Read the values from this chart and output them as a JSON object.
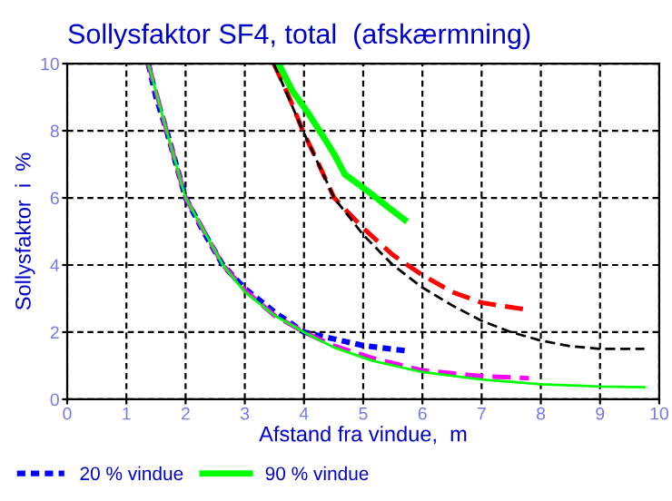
{
  "chart_data": {
    "type": "line",
    "title": "Sollysfaktor SF4, total  (afskærmning)",
    "xlabel": "Afstand fra vindue,  m",
    "ylabel": "Sollysfaktor  i  %",
    "xlim": [
      0,
      10
    ],
    "ylim": [
      0,
      10
    ],
    "xticks": [
      0,
      1,
      2,
      3,
      4,
      5,
      6,
      7,
      8,
      9,
      10
    ],
    "yticks": [
      0,
      2,
      4,
      6,
      8,
      10
    ],
    "grid": true,
    "legend": "bottom",
    "series": [
      {
        "name": "20 % vindue",
        "color": "#0000ff",
        "line_style": "dotted",
        "x": [
          1.37,
          1.5,
          1.68,
          2.0,
          2.3,
          2.63,
          3.0,
          3.5,
          4.0,
          4.5,
          5.0,
          5.7
        ],
        "values": [
          10,
          9,
          8,
          6,
          5,
          4,
          3.3,
          2.6,
          2.0,
          1.8,
          1.6,
          1.45
        ]
      },
      {
        "color": "#ff00ff",
        "line_style": "dashed",
        "x": [
          1.37,
          1.68,
          2.0,
          2.63,
          3.0,
          3.5,
          4.0,
          4.5,
          5.15,
          6.0,
          7.0,
          7.8
        ],
        "values": [
          10,
          8,
          6,
          4,
          3.25,
          2.5,
          2.0,
          1.6,
          1.23,
          0.86,
          0.69,
          0.63
        ]
      },
      {
        "color": "#00ff00",
        "line_style": "solid",
        "x": [
          1.37,
          1.68,
          2.0,
          2.63,
          3.0,
          3.5,
          4.0,
          4.5,
          5.15,
          6.0,
          7.0,
          8.0,
          9.0,
          9.75
        ],
        "values": [
          10,
          8,
          6,
          4,
          3.2,
          2.5,
          2.0,
          1.55,
          1.15,
          0.81,
          0.59,
          0.45,
          0.38,
          0.36
        ]
      },
      {
        "color": "#ff0000",
        "line_style": "dashed",
        "x": [
          3.49,
          3.75,
          3.98,
          4.25,
          4.51,
          5.0,
          5.5,
          6.0,
          6.5,
          7.0,
          7.76
        ],
        "values": [
          10,
          9,
          8,
          7,
          6,
          5.1,
          4.3,
          3.7,
          3.2,
          2.88,
          2.67
        ]
      },
      {
        "color": "#000000",
        "line_style": "dashed",
        "x": [
          3.49,
          3.98,
          4.51,
          5.0,
          5.5,
          6.0,
          6.5,
          7.0,
          7.5,
          8.0,
          8.5,
          9.0,
          9.75
        ],
        "values": [
          10,
          8,
          6,
          4.9,
          4.0,
          3.33,
          2.8,
          2.34,
          2.0,
          1.75,
          1.58,
          1.5,
          1.5
        ]
      },
      {
        "name": "90 % vindue",
        "color": "#00ff00",
        "line_style": "solid",
        "x": [
          3.57,
          3.8,
          4.08,
          4.3,
          4.51,
          4.69,
          5.0,
          5.15,
          5.4,
          5.7
        ],
        "values": [
          10,
          9.2,
          8.5,
          7.9,
          7.3,
          6.7,
          6.3,
          6.1,
          5.75,
          5.35
        ]
      }
    ]
  }
}
